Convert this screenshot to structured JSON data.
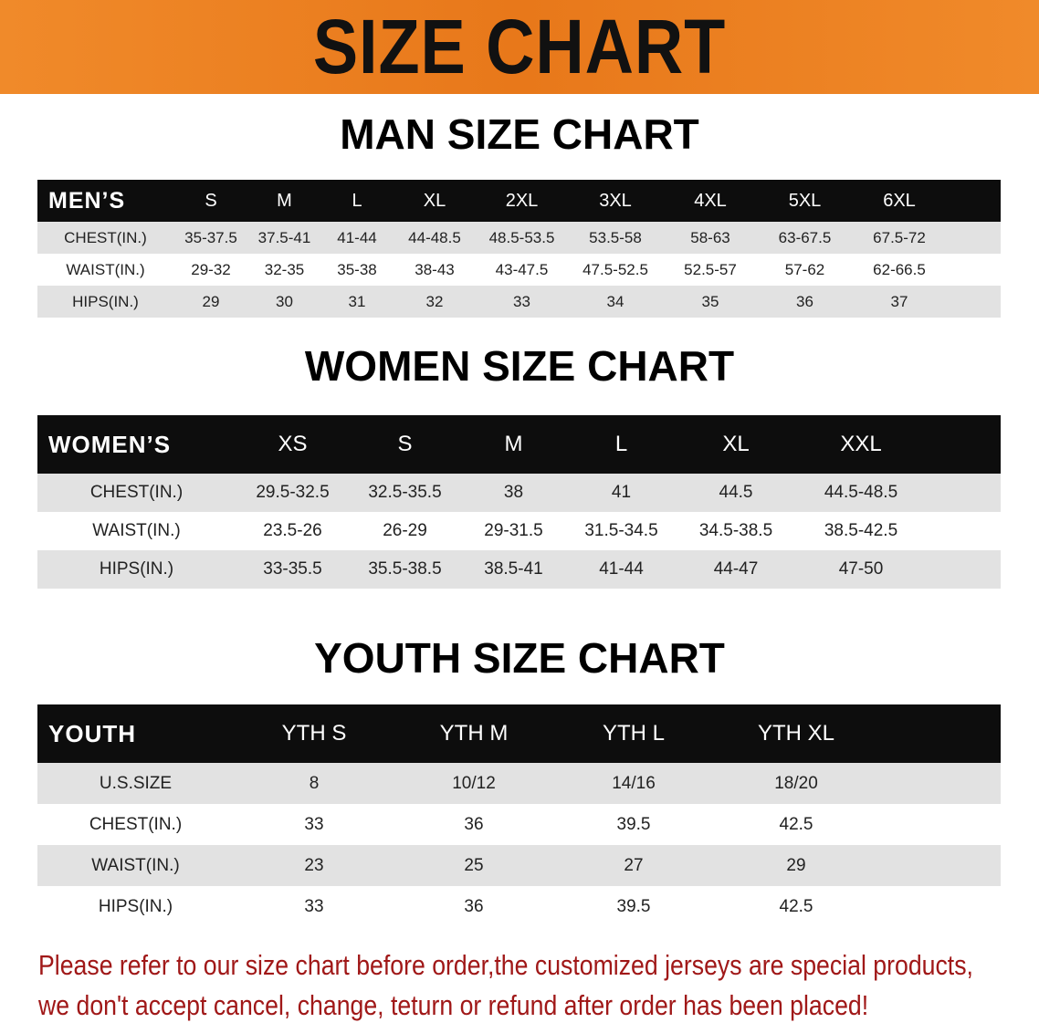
{
  "banner_title": "SIZE CHART",
  "men": {
    "title": "MAN SIZE CHART",
    "header": "MEN’S",
    "sizes": [
      "S",
      "M",
      "L",
      "XL",
      "2XL",
      "3XL",
      "4XL",
      "5XL",
      "6XL"
    ],
    "rows": [
      {
        "label": "CHEST(IN.)",
        "values": [
          "35-37.5",
          "37.5-41",
          "41-44",
          "44-48.5",
          "48.5-53.5",
          "53.5-58",
          "58-63",
          "63-67.5",
          "67.5-72"
        ]
      },
      {
        "label": "WAIST(IN.)",
        "values": [
          "29-32",
          "32-35",
          "35-38",
          "38-43",
          "43-47.5",
          "47.5-52.5",
          "52.5-57",
          "57-62",
          "62-66.5"
        ]
      },
      {
        "label": "HIPS(IN.)",
        "values": [
          "29",
          "30",
          "31",
          "32",
          "33",
          "34",
          "35",
          "36",
          "37"
        ]
      }
    ]
  },
  "women": {
    "title": "WOMEN SIZE CHART",
    "header": "WOMEN’S",
    "sizes": [
      "XS",
      "S",
      "M",
      "L",
      "XL",
      "XXL"
    ],
    "rows": [
      {
        "label": "CHEST(IN.)",
        "values": [
          "29.5-32.5",
          "32.5-35.5",
          "38",
          "41",
          "44.5",
          "44.5-48.5"
        ]
      },
      {
        "label": "WAIST(IN.)",
        "values": [
          "23.5-26",
          "26-29",
          "29-31.5",
          "31.5-34.5",
          "34.5-38.5",
          "38.5-42.5"
        ]
      },
      {
        "label": "HIPS(IN.)",
        "values": [
          "33-35.5",
          "35.5-38.5",
          "38.5-41",
          "41-44",
          "44-47",
          "47-50"
        ]
      }
    ]
  },
  "youth": {
    "title": "YOUTH SIZE CHART",
    "header": "YOUTH",
    "sizes": [
      "YTH S",
      "YTH M",
      "YTH L",
      "YTH XL"
    ],
    "rows": [
      {
        "label": "U.S.SIZE",
        "values": [
          "8",
          "10/12",
          "14/16",
          "18/20"
        ]
      },
      {
        "label": "CHEST(IN.)",
        "values": [
          "33",
          "36",
          "39.5",
          "42.5"
        ]
      },
      {
        "label": "WAIST(IN.)",
        "values": [
          "23",
          "25",
          "27",
          "29"
        ]
      },
      {
        "label": "HIPS(IN.)",
        "values": [
          "33",
          "36",
          "39.5",
          "42.5"
        ]
      }
    ]
  },
  "notice": {
    "line1": "Please refer to our size chart before order,the customized jerseys are special products,",
    "line2": "we don't accept cancel, change, teturn or refund after order has been placed!"
  },
  "colors": {
    "banner": "#e8781a",
    "header_row": "#0d0d0d",
    "stripe": "#e2e2e2",
    "notice": "#a01818"
  }
}
